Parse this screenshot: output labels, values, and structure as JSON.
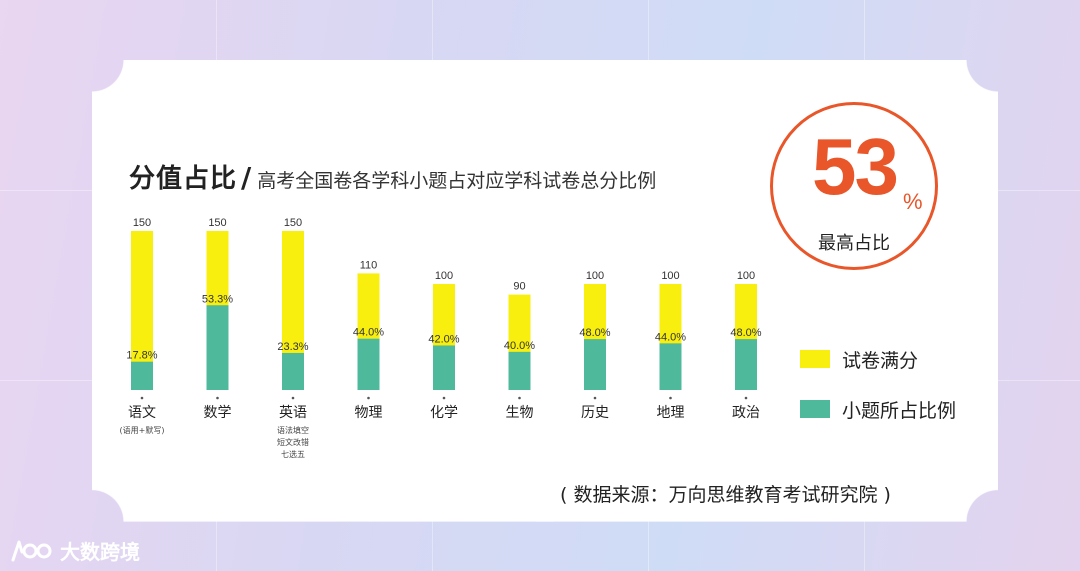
{
  "title": {
    "main": "分值占比",
    "separator": "/",
    "sub": "高考全国卷各学科小题占对应学科试卷总分比例"
  },
  "badge": {
    "value": "53",
    "unit": "%",
    "label": "最高占比"
  },
  "legend": {
    "full": "试卷满分",
    "small": "小题所占比例"
  },
  "source": "( 数据来源：万向思维教育考试研究院 )",
  "watermark": "大数跨境",
  "colors": {
    "full": "#f8ef0e",
    "small": "#4fb99c",
    "accent": "#e8562a"
  },
  "chart_data": {
    "type": "bar",
    "title": "高考全国卷各学科小题占对应学科试卷总分比例",
    "categories": [
      "语文",
      "数学",
      "英语",
      "物理",
      "化学",
      "生物",
      "历史",
      "地理",
      "政治"
    ],
    "category_notes": [
      "(语用+默写)",
      "",
      "语法填空\n短文改错\n七选五",
      "",
      "",
      "",
      "",
      "",
      ""
    ],
    "series": [
      {
        "name": "试卷满分",
        "values": [
          150,
          150,
          150,
          110,
          100,
          90,
          100,
          100,
          100
        ],
        "labels": [
          "150",
          "150",
          "150",
          "110",
          "100",
          "90",
          "100",
          "100",
          "100"
        ]
      },
      {
        "name": "小题所占比例",
        "values": [
          17.8,
          53.3,
          23.3,
          44.0,
          42.0,
          40.0,
          48.0,
          44.0,
          48.0
        ],
        "labels": [
          "17.8%",
          "53.3%",
          "23.3%",
          "44.0%",
          "42.0%",
          "40.0%",
          "48.0%",
          "44.0%",
          "48.0%"
        ]
      }
    ],
    "grid": false,
    "legend_position": "right"
  }
}
